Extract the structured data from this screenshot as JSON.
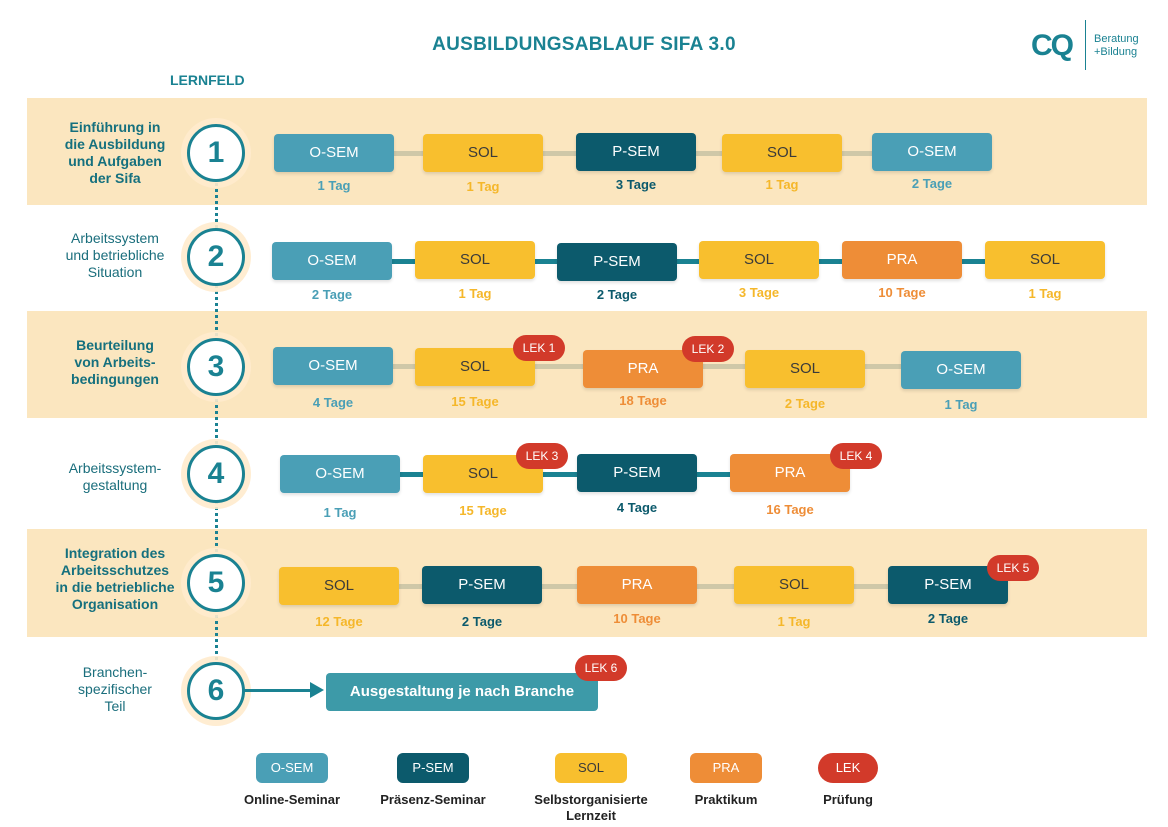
{
  "title": "AUSBILDUNGSABLAUF SIFA 3.0",
  "section_label": "LERNFELD",
  "logo": {
    "mark": "CQ",
    "text_line1": "Beratung",
    "text_line2": "+Bildung"
  },
  "colors": {
    "O-SEM": "#4a9fb6",
    "P-SEM": "#0c5a6c",
    "SOL": "#f8bf2e",
    "PRA": "#ee8d37",
    "LEK": "#d23a2a",
    "band": "#fbe6bf",
    "accent": "#1a8292"
  },
  "rows": [
    {
      "num": "1",
      "label": [
        "Einführung in",
        "die Ausbildung",
        "und Aufgaben",
        "der Sifa"
      ],
      "highlight": true,
      "modules": [
        {
          "type": "O-SEM",
          "days": "1 Tag"
        },
        {
          "type": "SOL",
          "days": "1 Tag"
        },
        {
          "type": "P-SEM",
          "days": "3 Tage"
        },
        {
          "type": "SOL",
          "days": "1 Tag"
        },
        {
          "type": "O-SEM",
          "days": "2 Tage"
        }
      ]
    },
    {
      "num": "2",
      "label": [
        "Arbeitssystem",
        "und betriebliche",
        "Situation"
      ],
      "highlight": false,
      "modules": [
        {
          "type": "O-SEM",
          "days": "2 Tage"
        },
        {
          "type": "SOL",
          "days": "1 Tag"
        },
        {
          "type": "P-SEM",
          "days": "2 Tage"
        },
        {
          "type": "SOL",
          "days": "3 Tage"
        },
        {
          "type": "PRA",
          "days": "10 Tage"
        },
        {
          "type": "SOL",
          "days": "1 Tag"
        }
      ]
    },
    {
      "num": "3",
      "label": [
        "Beurteilung",
        "von Arbeits-",
        "bedingungen"
      ],
      "highlight": true,
      "modules": [
        {
          "type": "O-SEM",
          "days": "4 Tage"
        },
        {
          "type": "SOL",
          "days": "15 Tage",
          "lek": "LEK 1"
        },
        {
          "type": "PRA",
          "days": "18 Tage",
          "lek": "LEK 2"
        },
        {
          "type": "SOL",
          "days": "2 Tage"
        },
        {
          "type": "O-SEM",
          "days": "1 Tag"
        }
      ]
    },
    {
      "num": "4",
      "label": [
        "Arbeitssystem-",
        "gestaltung"
      ],
      "highlight": false,
      "modules": [
        {
          "type": "O-SEM",
          "days": "1 Tag"
        },
        {
          "type": "SOL",
          "days": "15 Tage",
          "lek": "LEK 3"
        },
        {
          "type": "P-SEM",
          "days": "4 Tage"
        },
        {
          "type": "PRA",
          "days": "16 Tage",
          "lek": "LEK 4"
        }
      ]
    },
    {
      "num": "5",
      "label": [
        "Integration des",
        "Arbeitsschutzes",
        "in die betriebliche",
        "Organisation"
      ],
      "highlight": true,
      "modules": [
        {
          "type": "SOL",
          "days": "12 Tage"
        },
        {
          "type": "P-SEM",
          "days": "2 Tage"
        },
        {
          "type": "PRA",
          "days": "10 Tage"
        },
        {
          "type": "SOL",
          "days": "1 Tag"
        },
        {
          "type": "P-SEM",
          "days": "2 Tage",
          "lek": "LEK 5"
        }
      ]
    },
    {
      "num": "6",
      "label": [
        "Branchen-",
        "spezifischer",
        "Teil"
      ],
      "highlight": false,
      "branche": {
        "text": "Ausgestaltung je nach Branche",
        "lek": "LEK 6"
      }
    }
  ],
  "legend": [
    {
      "type": "O-SEM",
      "label": "Online-Seminar"
    },
    {
      "type": "P-SEM",
      "label": "Präsenz-Seminar"
    },
    {
      "type": "SOL",
      "label": "Selbstorganisierte Lernzeit"
    },
    {
      "type": "PRA",
      "label": "Praktikum"
    },
    {
      "type": "LEK",
      "label": "Prüfung"
    }
  ]
}
